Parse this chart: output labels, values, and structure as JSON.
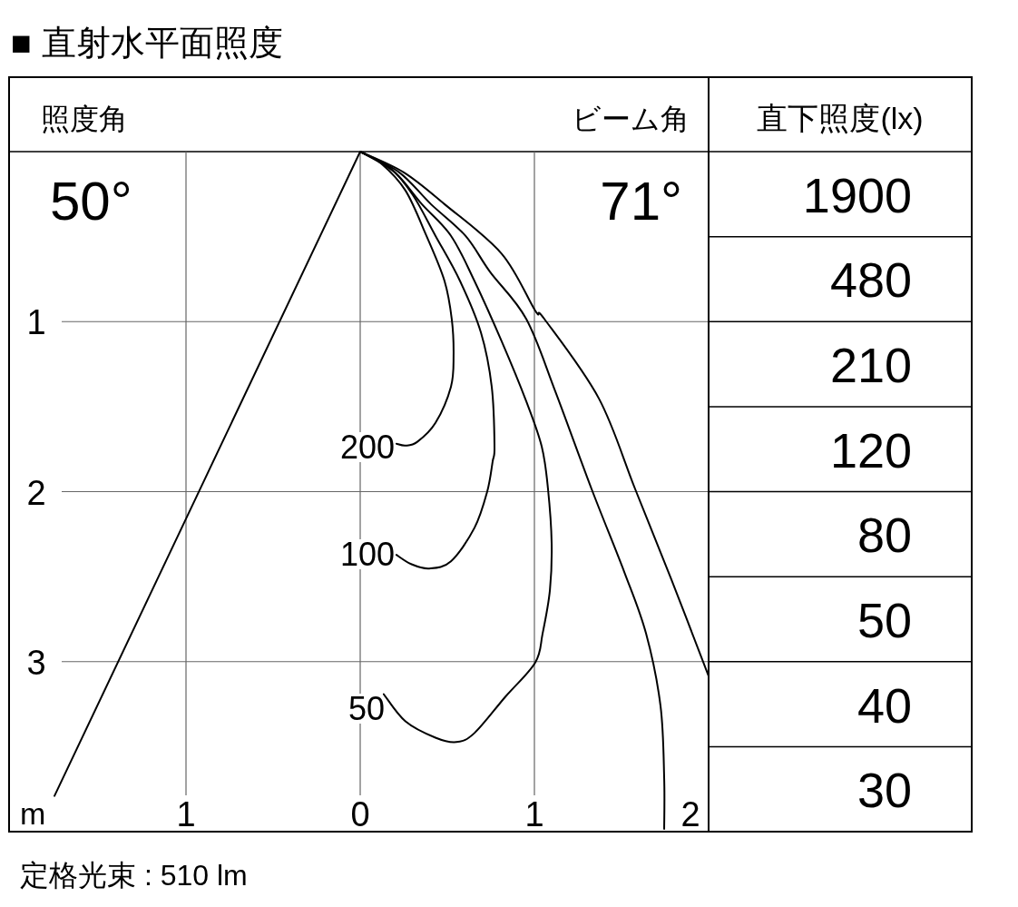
{
  "chart_data": [
    {
      "type": "line",
      "title": "■ 直射水平面照度",
      "xlabel": "m",
      "xlim": [
        -2,
        2
      ],
      "ylim": [
        4,
        0
      ],
      "xticks": [
        {
          "value": -1,
          "label": "1"
        },
        0,
        1,
        2
      ],
      "yticks": [
        1,
        2,
        3
      ],
      "grid": true,
      "series": [
        {
          "color": "#000000",
          "x": [
            0,
            -1.755
          ],
          "values": [
            0,
            3.79
          ]
        },
        {
          "color": "#000000",
          "x": [
            0,
            0.12,
            0.26,
            0.38,
            0.484,
            0.526,
            0.536,
            0.521,
            0.432,
            0.328,
            0.26,
            0.208
          ],
          "values": [
            0,
            0.069,
            0.229,
            0.495,
            0.761,
            0.989,
            1.202,
            1.383,
            1.596,
            1.707,
            1.729,
            1.718
          ]
        },
        {
          "color": "#000000",
          "x": [
            0,
            0.172,
            0.302,
            0.432,
            0.573,
            0.693,
            0.755,
            0.771,
            0.76,
            0.729,
            0.656,
            0.521,
            0.396,
            0.292,
            0.208
          ],
          "values": [
            0,
            0.096,
            0.255,
            0.495,
            0.761,
            1.064,
            1.383,
            1.734,
            1.824,
            2.0,
            2.213,
            2.41,
            2.452,
            2.426,
            2.372
          ]
        },
        {
          "color": "#000000",
          "x": [
            0,
            0.198,
            0.354,
            0.521,
            0.656,
            0.8125,
            0.953,
            1.042,
            1.078,
            1.099,
            1.089,
            1.047,
            1.005,
            0.833,
            0.656,
            0.552,
            0.432,
            0.26,
            0.135
          ],
          "values": [
            0,
            0.122,
            0.309,
            0.495,
            0.761,
            1.117,
            1.468,
            1.734,
            1.984,
            2.303,
            2.58,
            2.835,
            3.005,
            3.207,
            3.42,
            3.473,
            3.447,
            3.351,
            3.191
          ]
        },
        {
          "color": "#000000",
          "x": [
            0,
            0.224,
            0.406,
            0.604,
            0.745,
            0.953,
            1.12,
            1.328,
            1.516,
            1.641,
            1.724,
            1.745,
            1.745
          ],
          "values": [
            0,
            0.122,
            0.309,
            0.495,
            0.707,
            0.984,
            1.41,
            1.984,
            2.473,
            2.835,
            3.261,
            3.686,
            3.984
          ]
        },
        {
          "color": "#000000",
          "x": [
            0,
            0.25,
            0.484,
            0.8125,
            1.005,
            1.057,
            1.37,
            1.578,
            1.786,
            2.0
          ],
          "values": [
            0,
            0.122,
            0.309,
            0.601,
            0.936,
            0.984,
            1.452,
            1.984,
            2.516,
            3.085
          ]
        }
      ],
      "annotations": [
        "照度角",
        "50°",
        "ビーム角",
        "71°",
        "200",
        "100",
        "50",
        "定格光束 : 510 lm"
      ]
    },
    {
      "type": "other",
      "title": "直下照度(lx)",
      "values": [
        1900,
        480,
        210,
        120,
        80,
        50,
        40,
        30
      ],
      "data_labels": true
    }
  ]
}
